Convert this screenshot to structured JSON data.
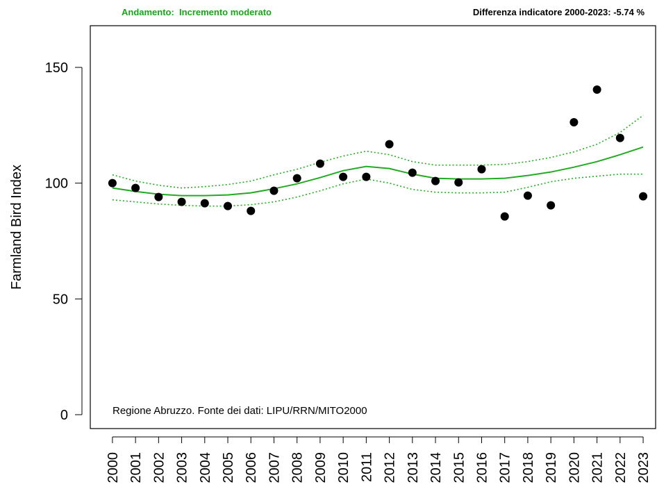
{
  "chart_data": {
    "type": "scatter",
    "subtitle": "Andamento:  Incremento moderato",
    "title": "Differenza indicatore 2000-2023: -5.74 %",
    "y_label": "Farmland Bird Index",
    "annotation": "Regione Abruzzo. Fonte dei dati: LIPU/RRN/MITO2000",
    "x": [
      2000,
      2001,
      2002,
      2003,
      2004,
      2005,
      2006,
      2007,
      2008,
      2009,
      2010,
      2011,
      2012,
      2013,
      2014,
      2015,
      2016,
      2017,
      2018,
      2019,
      2020,
      2021,
      2022,
      2023
    ],
    "xlim": [
      1999.04,
      2023.54
    ],
    "xticks": [
      2000,
      2001,
      2002,
      2003,
      2004,
      2005,
      2006,
      2007,
      2008,
      2009,
      2010,
      2011,
      2012,
      2013,
      2014,
      2015,
      2016,
      2017,
      2018,
      2019,
      2020,
      2021,
      2022,
      2023
    ],
    "ylim": [
      -6,
      168
    ],
    "yticks": [
      0,
      50,
      100,
      150
    ],
    "subtitle_color": "#1aa31a",
    "series": [
      {
        "kind": "points",
        "color": "#000000",
        "values": [
          100,
          97.9,
          94.0,
          91.9,
          91.3,
          90.1,
          88.0,
          96.7,
          102.1,
          108.4,
          102.7,
          102.7,
          116.8,
          104.5,
          100.9,
          100.3,
          106.0,
          85.6,
          94.6,
          90.4,
          126.3,
          140.4,
          119.5,
          94.3
        ]
      },
      {
        "kind": "line",
        "dash": false,
        "color": "#22aa22",
        "values": [
          97.9,
          96.4,
          95.2,
          94.6,
          94.6,
          94.9,
          95.8,
          97.6,
          99.7,
          102.4,
          105.4,
          107.2,
          106.3,
          103.9,
          102.1,
          101.8,
          101.8,
          102.1,
          103.3,
          104.8,
          106.9,
          109.3,
          112.3,
          115.6
        ]
      },
      {
        "kind": "line",
        "dash": true,
        "color": "#22aa22",
        "values": [
          103.6,
          100.9,
          99.1,
          97.9,
          98.5,
          99.4,
          100.9,
          103.6,
          106.0,
          109.0,
          111.7,
          113.8,
          112.3,
          109.3,
          107.8,
          107.8,
          107.8,
          108.1,
          109.3,
          111.1,
          113.5,
          116.8,
          121.9,
          129.3
        ]
      },
      {
        "kind": "line",
        "dash": true,
        "color": "#22aa22",
        "values": [
          92.8,
          91.9,
          91.0,
          90.4,
          90.1,
          90.1,
          90.7,
          91.9,
          94.0,
          96.7,
          99.7,
          101.8,
          100.0,
          97.3,
          96.1,
          95.8,
          95.8,
          96.1,
          98.2,
          100.6,
          102.1,
          103.0,
          103.9,
          103.9
        ]
      }
    ]
  }
}
